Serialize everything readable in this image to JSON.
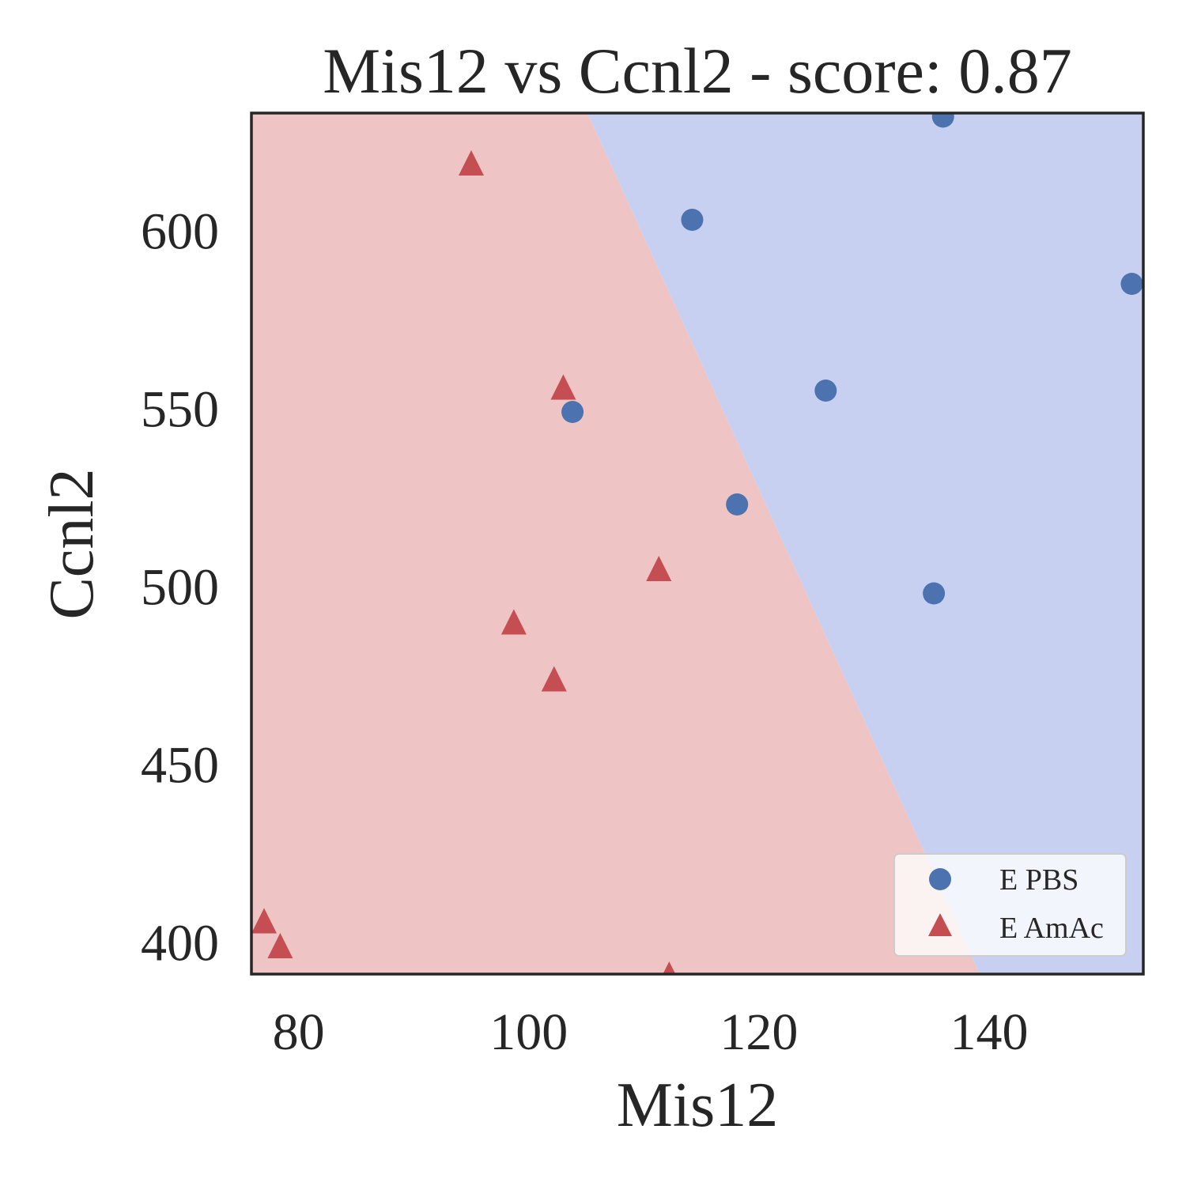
{
  "chart_data": {
    "type": "scatter",
    "title": "Mis12 vs Ccnl2 - score: 0.87",
    "xlabel": "Mis12",
    "ylabel": "Ccnl2",
    "xlim": [
      75.9,
      153.4
    ],
    "ylim": [
      391,
      633
    ],
    "xticks": [
      "80",
      "100",
      "120",
      "140"
    ],
    "yticks": [
      "400",
      "450",
      "500",
      "550",
      "600"
    ],
    "xtick_values": [
      80,
      100,
      120,
      140
    ],
    "ytick_values": [
      400,
      450,
      500,
      550,
      600
    ],
    "grid": false,
    "legend_position": "bottom-right",
    "decision_boundary": {
      "points": [
        [
          105.1,
          633
        ],
        [
          139.2,
          391
        ]
      ],
      "left_region": "E AmAc",
      "right_region": "E PBS",
      "colors": {
        "E PBS": "#c8d0f2",
        "E AmAc": "#eec4c4"
      }
    },
    "series": [
      {
        "name": "E PBS",
        "marker": "circle",
        "color": "#4c72b0",
        "points": [
          [
            136.0,
            632
          ],
          [
            114.2,
            603
          ],
          [
            152.4,
            585
          ],
          [
            103.8,
            549
          ],
          [
            125.8,
            555
          ],
          [
            118.1,
            523
          ],
          [
            135.2,
            498
          ]
        ]
      },
      {
        "name": "E AmAc",
        "marker": "triangle",
        "color": "#c44e52",
        "points": [
          [
            95.0,
            619
          ],
          [
            103.0,
            556
          ],
          [
            111.3,
            505
          ],
          [
            98.7,
            490
          ],
          [
            102.2,
            474
          ],
          [
            77.0,
            406
          ],
          [
            78.4,
            399
          ],
          [
            112.2,
            391
          ]
        ]
      }
    ]
  }
}
